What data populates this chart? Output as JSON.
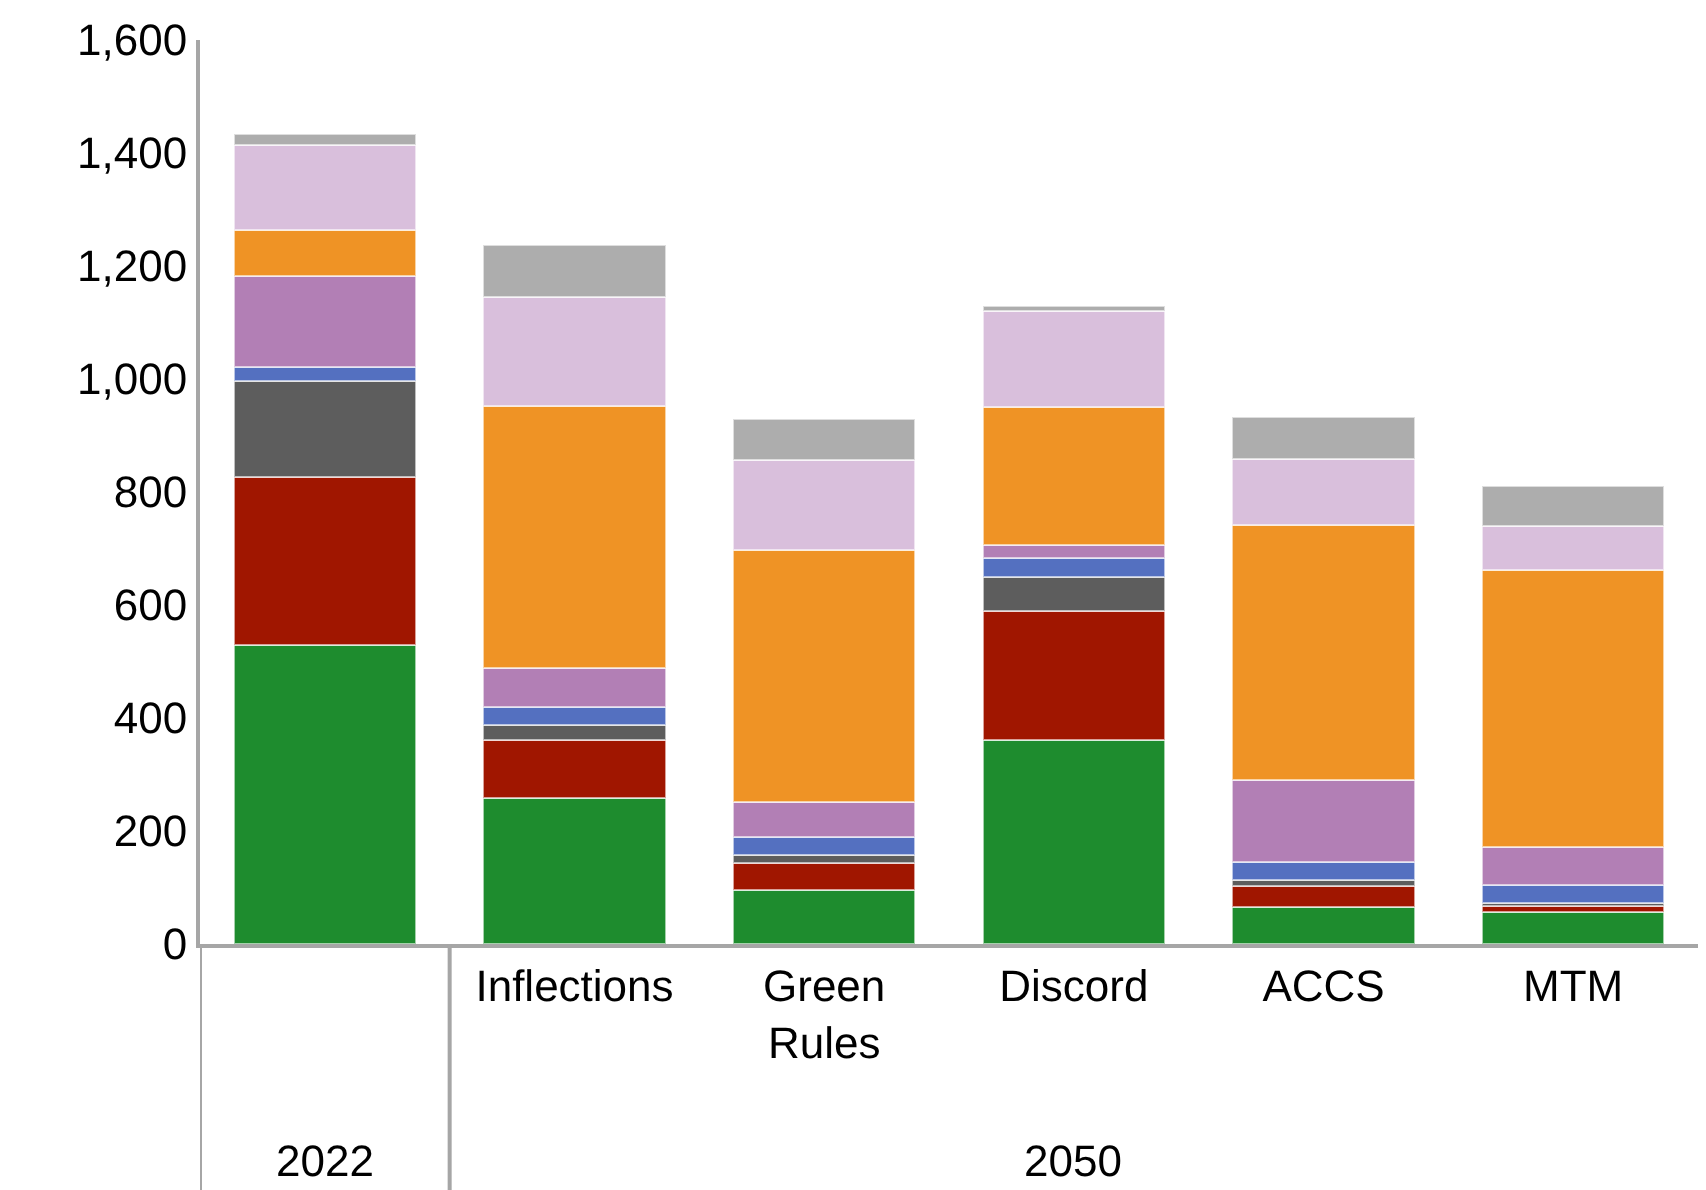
{
  "chart_data": {
    "type": "bar",
    "stacked": true,
    "categories": [
      null,
      "Inflections",
      "Green Rules",
      "Discord",
      "ACCS",
      "MTM"
    ],
    "series": [
      {
        "color": "#1e8c2e",
        "values": [
          530,
          258,
          96,
          361,
          66,
          57
        ]
      },
      {
        "color": "#a01600",
        "values": [
          296,
          103,
          48,
          229,
          36,
          11
        ]
      },
      {
        "color": "#5d5d5d",
        "values": [
          171,
          27,
          13,
          60,
          11,
          5
        ]
      },
      {
        "color": "#5470c0",
        "values": [
          25,
          32,
          32,
          34,
          32,
          32
        ]
      },
      {
        "color": "#b27fb5",
        "values": [
          161,
          68,
          62,
          23,
          145,
          66
        ]
      },
      {
        "color": "#ef9325",
        "values": [
          81,
          465,
          447,
          243,
          451,
          491
        ]
      },
      {
        "color": "#d9bfdc",
        "values": [
          151,
          193,
          158,
          170,
          118,
          78
        ]
      },
      {
        "color": "#adadad",
        "values": [
          18,
          92,
          73,
          10,
          73,
          71
        ]
      }
    ],
    "ylim": [
      0,
      1600
    ],
    "yticks": [
      0,
      200,
      400,
      600,
      800,
      {
        "value": 1000,
        "label": "1,000"
      },
      {
        "value": 1200,
        "label": "1,200"
      },
      {
        "value": 1400,
        "label": "1,400"
      },
      {
        "value": 1600,
        "label": "1,600"
      }
    ],
    "annotations": [
      "2022",
      "2050"
    ],
    "legend": false
  }
}
